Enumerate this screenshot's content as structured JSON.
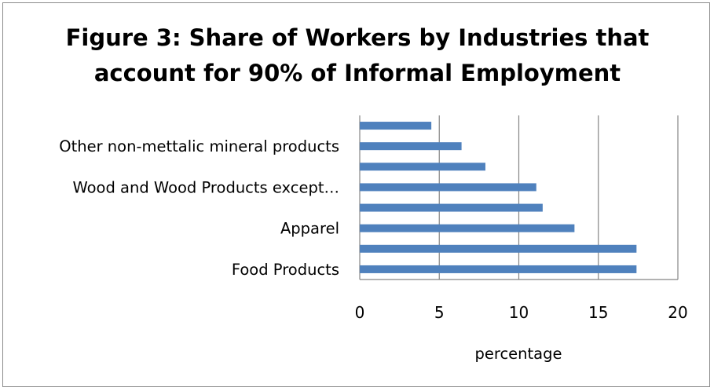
{
  "chart_data": {
    "type": "bar",
    "orientation": "horizontal",
    "title_lines": [
      "Figure 3: Share of Workers by Industries that",
      "account for 90% of Informal Employment"
    ],
    "xlabel": "percentage",
    "ylabel": "",
    "categories": [
      "Food Products",
      "",
      "Apparel",
      "",
      "Wood and Wood Products except…",
      "",
      "Other non-mettalic mineral products",
      ""
    ],
    "values": [
      17.4,
      17.4,
      13.5,
      11.5,
      11.1,
      7.9,
      6.4,
      4.5
    ],
    "xlim": [
      0,
      20
    ],
    "xticks": [
      "0",
      "5",
      "10",
      "15",
      "20"
    ],
    "grid": true,
    "legend": "none",
    "bar_color": "#4f81bd",
    "gridline_color": "#858585"
  }
}
